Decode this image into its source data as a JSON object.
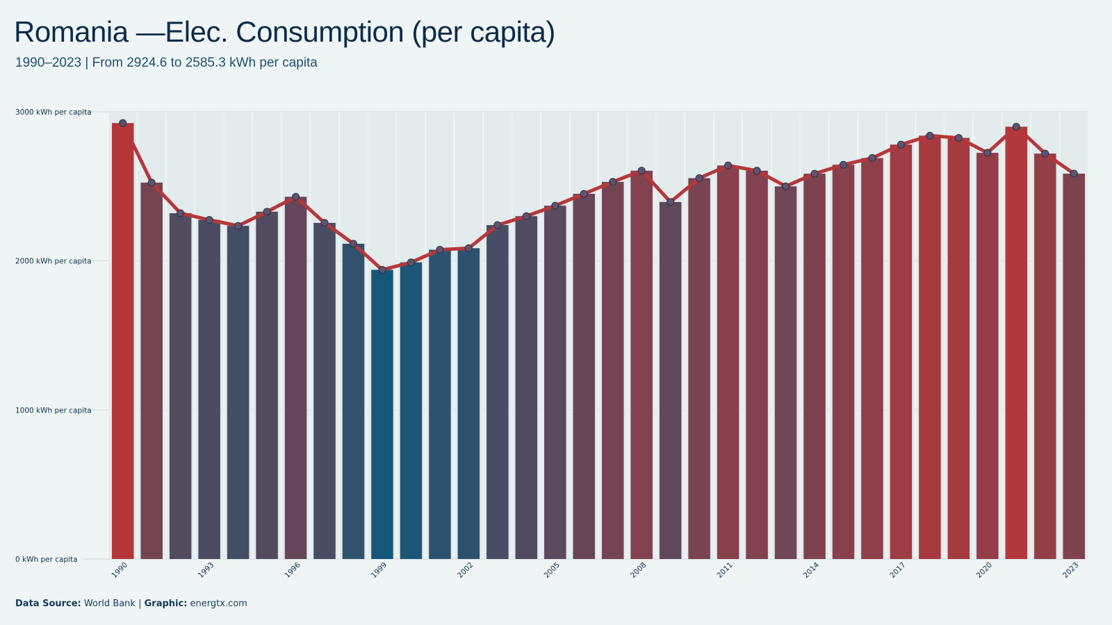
{
  "title": "Romania —Elec. Consumption (per capita)",
  "subtitle": "1990–2023 | From 2924.6 to 2585.3 kWh per capita",
  "caption": {
    "source_label": "Data Source:",
    "source_value": "World Bank",
    "separator": "|",
    "graphic_label": "Graphic:",
    "graphic_value": "energtx.com"
  },
  "colors": {
    "background": "#eff5f5",
    "line": "#b5373a",
    "high": "#b5373a",
    "low": "#155778",
    "marker": "#5c5470"
  },
  "chart_data": {
    "type": "bar",
    "title": "Romania —Elec. Consumption (per capita)",
    "subtitle": "1990–2023 | From 2924.6 to 2585.3 kWh per capita",
    "ylim": [
      0,
      3000
    ],
    "y_ticks": [
      {
        "value": 0,
        "label": "0 kWh per capita"
      },
      {
        "value": 1000,
        "label": "1000 kWh per capita"
      },
      {
        "value": 2000,
        "label": "2000 kWh per capita"
      },
      {
        "value": 3000,
        "label": "3000 kWh per capita"
      }
    ],
    "x_tick_labels": [
      "1990",
      "1993",
      "1996",
      "1999",
      "2002",
      "2005",
      "2008",
      "2011",
      "2014",
      "2017",
      "2020",
      "2023"
    ],
    "grid": true,
    "categories": [
      "1990",
      "1991",
      "1992",
      "1993",
      "1994",
      "1995",
      "1996",
      "1997",
      "1998",
      "1999",
      "2000",
      "2001",
      "2002",
      "2003",
      "2004",
      "2005",
      "2006",
      "2007",
      "2008",
      "2009",
      "2010",
      "2011",
      "2012",
      "2013",
      "2014",
      "2015",
      "2016",
      "2017",
      "2018",
      "2019",
      "2020",
      "2021",
      "2022",
      "2023"
    ],
    "values": [
      2924.6,
      2525,
      2320,
      2275,
      2235,
      2330,
      2430,
      2255,
      2115,
      1940,
      1990,
      2075,
      2085,
      2240,
      2300,
      2370,
      2450,
      2530,
      2605,
      2395,
      2555,
      2640,
      2605,
      2500,
      2585,
      2645,
      2690,
      2780,
      2840,
      2825,
      2725,
      2900,
      2720,
      2585.3
    ]
  }
}
